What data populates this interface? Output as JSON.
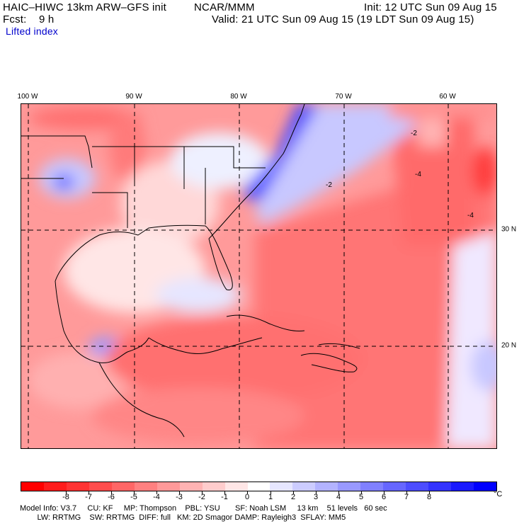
{
  "header": {
    "model": "HAIC–HIWC 13km ARW–GFS init",
    "center": "NCAR/MMM",
    "init": "Init: 12 UTC Sun 09 Aug 15",
    "fcst": "Fcst:    9 h",
    "valid": "Valid: 21 UTC Sun 09 Aug 15 (19 LDT Sun 09 Aug 15)",
    "field": "Lifted index"
  },
  "map": {
    "longitude_labels": [
      "100 W",
      "90 W",
      "80 W",
      "70 W",
      "60 W"
    ],
    "latitude_labels": [
      "30 N",
      "20 N"
    ],
    "contour_labels": [
      "-2",
      "-4",
      "-2",
      "-4"
    ]
  },
  "colorbar": {
    "colors": [
      "#ff0000",
      "#ff1c1c",
      "#ff3333",
      "#ff4d4d",
      "#ff6666",
      "#ff8080",
      "#ff9999",
      "#ffb3b3",
      "#ffcccc",
      "#ffe6e6",
      "#ffffff",
      "#e6e6ff",
      "#ccccff",
      "#b3b3ff",
      "#9999ff",
      "#8080ff",
      "#6666ff",
      "#4d4dff",
      "#3333ff",
      "#1a1aff",
      "#0000ff"
    ],
    "labels": [
      "-8",
      "-7",
      "-6",
      "-5",
      "-4",
      "-3",
      "-2",
      "-1",
      "0",
      "1",
      "2",
      "3",
      "4",
      "5",
      "6",
      "7",
      "8"
    ],
    "unit": "°C"
  },
  "model_info": {
    "line1": "Model Info: V3.7     CU: KF     MP: Thompson    PBL: YSU       SF: Noah LSM     13 km    51 levels   60 sec",
    "line2": "        LW: RRTMG    SW: RRTMG  DIFF: full   KM: 2D Smagor DAMP: Rayleigh3  SFLAY: MM5"
  }
}
